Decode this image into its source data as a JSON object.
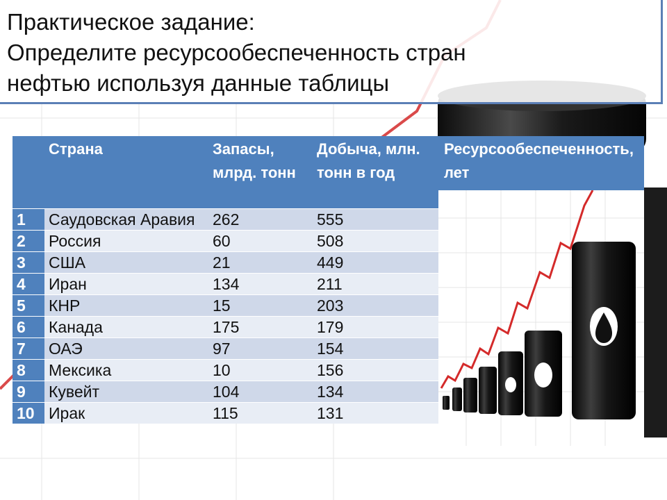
{
  "title": {
    "lines": [
      "Практическое задание:",
      "Определите ресурсообеспеченность стран",
      "нефтью используя данные таблицы"
    ]
  },
  "table": {
    "headers": {
      "num": "",
      "country": "Страна",
      "reserves": "Запасы, млрд. тонн",
      "production": "Добыча, млн. тонн в год",
      "supply": "Ресурсообеспеченность, лет"
    },
    "rows": [
      {
        "num": "1",
        "country": "Саудовская Аравия",
        "reserves": "262",
        "production": "555",
        "supply": ""
      },
      {
        "num": "2",
        "country": "Россия",
        "reserves": "60",
        "production": "508",
        "supply": ""
      },
      {
        "num": "3",
        "country": "США",
        "reserves": "21",
        "production": "449",
        "supply": ""
      },
      {
        "num": "4",
        "country": "Иран",
        "reserves": "134",
        "production": "211",
        "supply": ""
      },
      {
        "num": "5",
        "country": "КНР",
        "reserves": "15",
        "production": "203",
        "supply": ""
      },
      {
        "num": "6",
        "country": "Канада",
        "reserves": "175",
        "production": "179",
        "supply": ""
      },
      {
        "num": "7",
        "country": "ОАЭ",
        "reserves": "97",
        "production": "154",
        "supply": ""
      },
      {
        "num": "8",
        "country": "Мексика",
        "reserves": "10",
        "production": "156",
        "supply": ""
      },
      {
        "num": "9",
        "country": "Кувейт",
        "reserves": "104",
        "production": "134",
        "supply": ""
      },
      {
        "num": "10",
        "country": "Ирак",
        "reserves": "115",
        "production": "131",
        "supply": ""
      }
    ]
  },
  "colors": {
    "header_blue": "#4f81bd",
    "row_dark": "#cfd8e9",
    "row_light": "#e8edf5",
    "trend_red": "#d42a2a",
    "barrel_black": "#1a1a1a"
  },
  "icons": [
    "oil-barrel-icon",
    "oil-drop-icon",
    "trend-arrow-icon"
  ]
}
